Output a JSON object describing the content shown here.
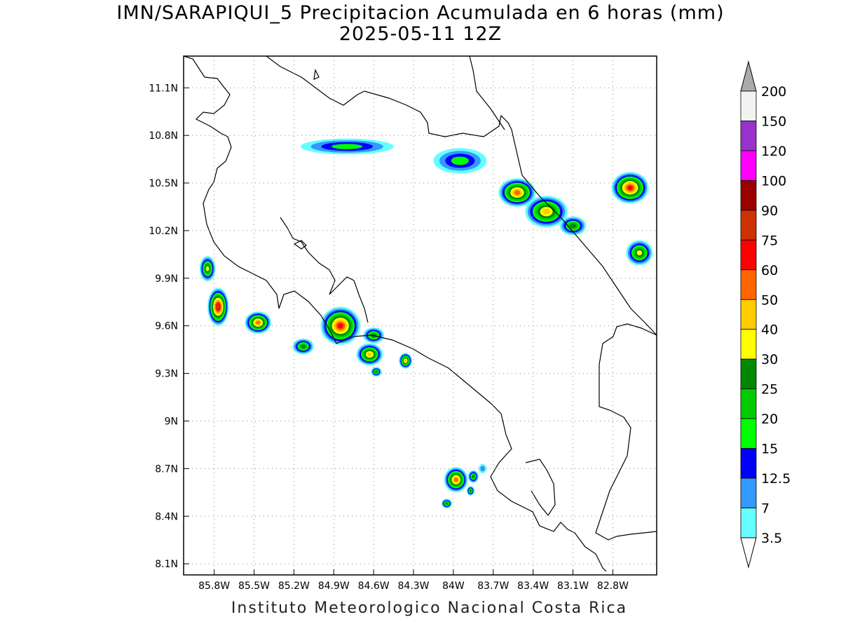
{
  "title_line1": "IMN/SARAPIQUI_5 Precipitacion Acumulada en 6 horas (mm)",
  "title_line2": "2025-05-11 12Z",
  "credit": "Instituto Meteorologico Nacional Costa Rica",
  "map": {
    "lon_range": [
      -86.03,
      -82.47
    ],
    "lat_range": [
      8.03,
      11.3
    ],
    "lat_ticks": [
      "11.1N",
      "10.8N",
      "10.5N",
      "10.2N",
      "9.9N",
      "9.6N",
      "9.3N",
      "9N",
      "8.7N",
      "8.4N",
      "8.1N"
    ],
    "lon_ticks": [
      "85.8W",
      "85.5W",
      "85.2W",
      "84.9W",
      "84.6W",
      "84.3W",
      "84W",
      "83.7W",
      "83.4W",
      "83.1W",
      "82.8W"
    ],
    "grid": "dotted"
  },
  "legend": {
    "levels": [
      "200",
      "150",
      "120",
      "100",
      "90",
      "75",
      "60",
      "50",
      "40",
      "30",
      "25",
      "20",
      "15",
      "12.5",
      "7",
      "3.5"
    ],
    "colors": [
      "#aaaaaa",
      "#f2f2f2",
      "#9932cc",
      "#ff00ff",
      "#990000",
      "#cc3300",
      "#ff0000",
      "#ff6600",
      "#ffcc00",
      "#ffff00",
      "#008800",
      "#00cc00",
      "#00ff00",
      "#0000ff",
      "#3399ff",
      "#66ffff"
    ]
  },
  "precip_cells": [
    {
      "lon": -85.85,
      "lat": 9.96,
      "rx": 0.06,
      "ry": 0.08,
      "level": 6
    },
    {
      "lon": -85.77,
      "lat": 9.72,
      "rx": 0.08,
      "ry": 0.12,
      "level": 10
    },
    {
      "lon": -85.47,
      "lat": 9.62,
      "rx": 0.1,
      "ry": 0.07,
      "level": 8
    },
    {
      "lon": -85.13,
      "lat": 9.47,
      "rx": 0.08,
      "ry": 0.05,
      "level": 5
    },
    {
      "lon": -84.85,
      "lat": 9.6,
      "rx": 0.15,
      "ry": 0.12,
      "level": 9
    },
    {
      "lon": -84.63,
      "lat": 9.42,
      "rx": 0.1,
      "ry": 0.07,
      "level": 7
    },
    {
      "lon": -84.6,
      "lat": 9.54,
      "rx": 0.08,
      "ry": 0.05,
      "level": 5
    },
    {
      "lon": -84.36,
      "lat": 9.38,
      "rx": 0.05,
      "ry": 0.05,
      "level": 7
    },
    {
      "lon": -84.58,
      "lat": 9.31,
      "rx": 0.04,
      "ry": 0.03,
      "level": 5
    },
    {
      "lon": -84.8,
      "lat": 10.73,
      "rx": 0.35,
      "ry": 0.05,
      "level": 3
    },
    {
      "lon": -83.95,
      "lat": 10.64,
      "rx": 0.2,
      "ry": 0.08,
      "level": 3
    },
    {
      "lon": -83.52,
      "lat": 10.44,
      "rx": 0.14,
      "ry": 0.09,
      "level": 8
    },
    {
      "lon": -83.3,
      "lat": 10.32,
      "rx": 0.16,
      "ry": 0.1,
      "level": 7
    },
    {
      "lon": -83.1,
      "lat": 10.23,
      "rx": 0.1,
      "ry": 0.06,
      "level": 5
    },
    {
      "lon": -82.67,
      "lat": 10.47,
      "rx": 0.14,
      "ry": 0.1,
      "level": 9
    },
    {
      "lon": -82.6,
      "lat": 10.06,
      "rx": 0.1,
      "ry": 0.08,
      "level": 6
    },
    {
      "lon": -83.98,
      "lat": 8.63,
      "rx": 0.09,
      "ry": 0.08,
      "level": 8
    },
    {
      "lon": -83.85,
      "lat": 8.65,
      "rx": 0.04,
      "ry": 0.04,
      "level": 5
    },
    {
      "lon": -84.05,
      "lat": 8.48,
      "rx": 0.04,
      "ry": 0.03,
      "level": 5
    },
    {
      "lon": -83.87,
      "lat": 8.56,
      "rx": 0.03,
      "ry": 0.03,
      "level": 5
    },
    {
      "lon": -83.78,
      "lat": 8.7,
      "rx": 0.03,
      "ry": 0.03,
      "level": 1
    }
  ]
}
